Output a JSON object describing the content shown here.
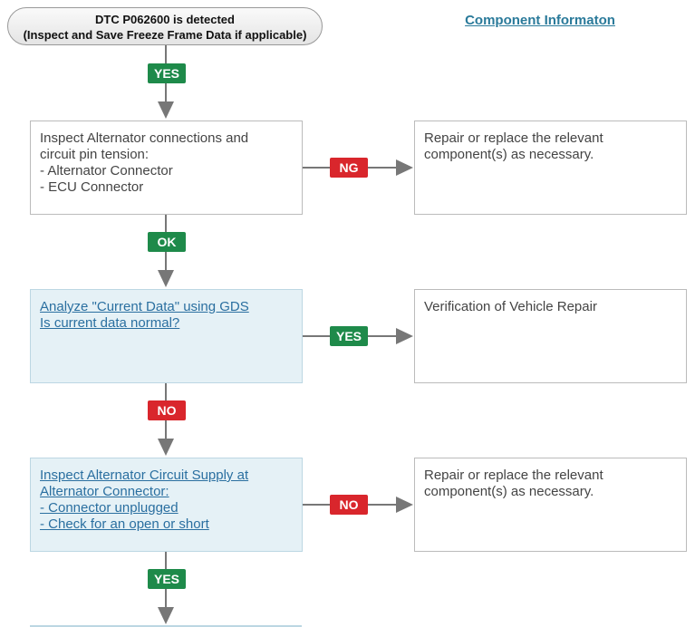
{
  "start": {
    "lines": [
      "DTC P062600 is detected",
      "(Inspect and Save Freeze Frame Data if applicable)"
    ]
  },
  "header_link": "Component Informaton",
  "flow_labels": [
    "YES",
    "NG",
    "OK",
    "YES",
    "NO",
    "NO",
    "YES"
  ],
  "steps": [
    {
      "lines": [
        "Inspect Alternator connections and",
        "circuit pin tension:",
        "- Alternator Connector",
        "- ECU Connector"
      ]
    },
    {
      "lines": [
        "Analyze \"Current Data\" using GDS",
        "Is current data normal?"
      ]
    },
    {
      "lines": [
        "Inspect Alternator Circuit Supply at",
        "Alternator Connector:",
        "- Connector unplugged",
        "- Check for an open or short"
      ]
    }
  ],
  "results": [
    {
      "lines": [
        "Repair or replace the relevant",
        "component(s) as necessary."
      ]
    },
    {
      "lines": [
        "Verification of Vehicle Repair"
      ]
    },
    {
      "lines": [
        "Repair or replace the relevant",
        "component(s) as necessary."
      ]
    }
  ]
}
